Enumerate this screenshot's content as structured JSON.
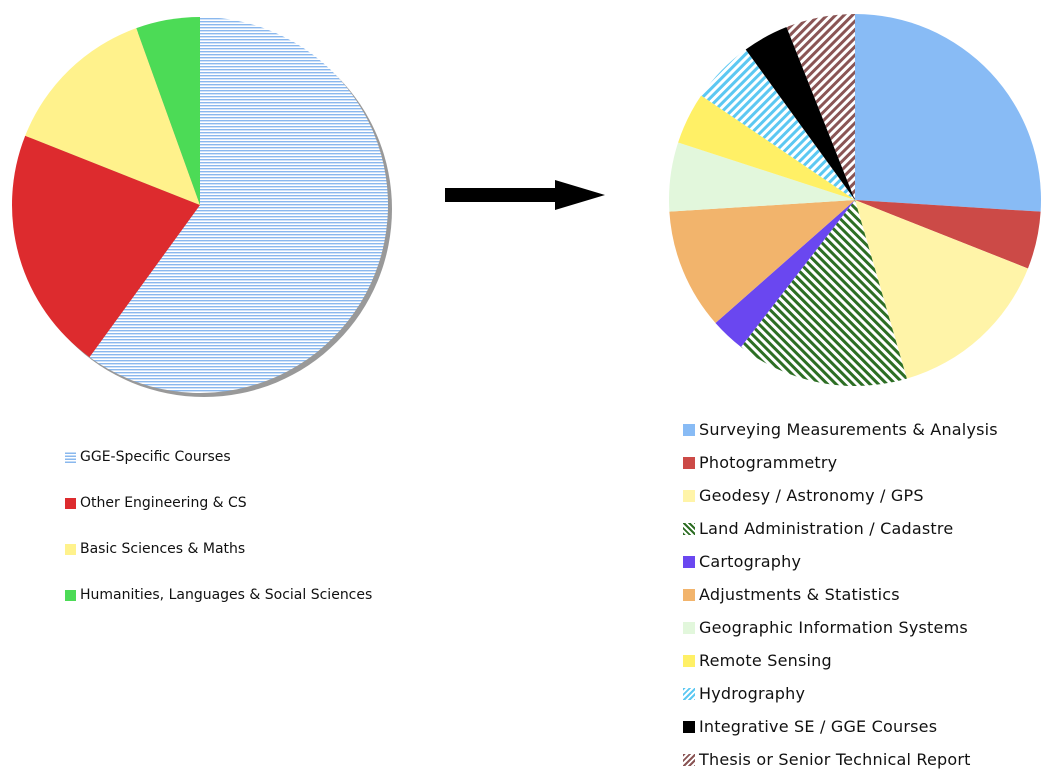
{
  "chart_data": [
    {
      "type": "pie",
      "shadow": true,
      "categories": [
        "GGE-Specific Courses",
        "Other Engineering & CS",
        "Basic Sciences & Maths",
        "Humanities, Languages & Social Sciences"
      ],
      "values": [
        60,
        21,
        13.5,
        5.5
      ],
      "colors": [
        "#8ab8ee",
        "#dd2b2e",
        "#fff28c",
        "#4cdb56"
      ],
      "patterns": [
        "horizontal",
        "solid",
        "solid",
        "solid"
      ]
    },
    {
      "type": "pie",
      "shadow": false,
      "categories": [
        "Surveying Measurements & Analysis",
        "Photogrammetry",
        "Geodesy / Astronomy / GPS",
        "Land Administration  / Cadastre",
        "Cartography",
        "Adjustments & Statistics",
        "Geographic Information Systems",
        "Remote Sensing",
        "Hydrography",
        "Integrative SE / GGE Courses",
        "Thesis or Senior Technical Report"
      ],
      "values": [
        26,
        5,
        14.5,
        15,
        3,
        10.5,
        6,
        4.5,
        5.5,
        4,
        6
      ],
      "colors": [
        "#88bbf5",
        "#cc4a47",
        "#fff4a8",
        "#2d6e24",
        "#6a47f0",
        "#f2b46c",
        "#e2f7dc",
        "#fff066",
        "#5cc8f2",
        "#000000",
        "#8a5555"
      ],
      "patterns": [
        "solid",
        "solid",
        "solid",
        "backslash",
        "solid",
        "solid",
        "solid",
        "solid",
        "slash",
        "solid",
        "slash"
      ]
    }
  ]
}
